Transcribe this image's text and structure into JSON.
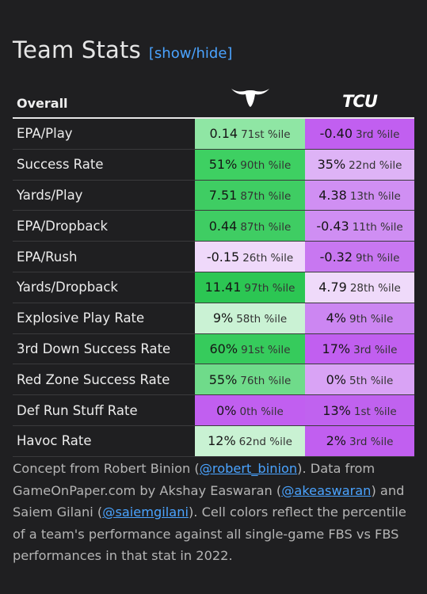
{
  "header": {
    "title": "Team Stats",
    "toggle_label": "[show/hide]"
  },
  "table": {
    "header_label": "Overall",
    "teams": [
      {
        "logo_icon": "texas-longhorn-icon",
        "logo_color": "#ffffff"
      },
      {
        "logo_icon": "tcu-wordmark-icon",
        "logo_text": "TCU",
        "logo_color": "#ffffff"
      }
    ],
    "rows": [
      {
        "stat": "EPA/Play",
        "team1": {
          "value": "0.14",
          "pct": "71st %ile",
          "color": "#8fe6a4"
        },
        "team2": {
          "value": "-0.40",
          "pct": "3rd %ile",
          "color": "#c15ff0"
        }
      },
      {
        "stat": "Success Rate",
        "team1": {
          "value": "51%",
          "pct": "90th %ile",
          "color": "#3ed062"
        },
        "team2": {
          "value": "35%",
          "pct": "22nd %ile",
          "color": "#deb3f6"
        }
      },
      {
        "stat": "Yards/Play",
        "team1": {
          "value": "7.51",
          "pct": "87th %ile",
          "color": "#3fcd63"
        },
        "team2": {
          "value": "4.38",
          "pct": "13th %ile",
          "color": "#d08ff3"
        }
      },
      {
        "stat": "EPA/Dropback",
        "team1": {
          "value": "0.44",
          "pct": "87th %ile",
          "color": "#3fcd63"
        },
        "team2": {
          "value": "-0.43",
          "pct": "11th %ile",
          "color": "#cf8ef3"
        }
      },
      {
        "stat": "EPA/Rush",
        "team1": {
          "value": "-0.15",
          "pct": "26th %ile",
          "color": "#efd9fa"
        },
        "team2": {
          "value": "-0.32",
          "pct": "9th %ile",
          "color": "#c877f1"
        }
      },
      {
        "stat": "Yards/Dropback",
        "team1": {
          "value": "11.41",
          "pct": "97th %ile",
          "color": "#2cc653"
        },
        "team2": {
          "value": "4.79",
          "pct": "28th %ile",
          "color": "#efdafa"
        }
      },
      {
        "stat": "Explosive Play Rate",
        "team1": {
          "value": "9%",
          "pct": "58th %ile",
          "color": "#caf2d4"
        },
        "team2": {
          "value": "4%",
          "pct": "9th %ile",
          "color": "#cc86f2"
        }
      },
      {
        "stat": "3rd Down Success Rate",
        "team1": {
          "value": "60%",
          "pct": "91st %ile",
          "color": "#36cb5c"
        },
        "team2": {
          "value": "17%",
          "pct": "3rd %ile",
          "color": "#c15ff0"
        }
      },
      {
        "stat": "Red Zone Success Rate",
        "team1": {
          "value": "55%",
          "pct": "76th %ile",
          "color": "#6fdb8a"
        },
        "team2": {
          "value": "0%",
          "pct": "5th %ile",
          "color": "#d9a3f5"
        }
      },
      {
        "stat": "Def Run Stuff Rate",
        "team1": {
          "value": "0%",
          "pct": "0th %ile",
          "color": "#c15ff0"
        },
        "team2": {
          "value": "13%",
          "pct": "1st %ile",
          "color": "#c062ef"
        }
      },
      {
        "stat": "Havoc Rate",
        "team1": {
          "value": "12%",
          "pct": "62nd %ile",
          "color": "#c9f2d3"
        },
        "team2": {
          "value": "2%",
          "pct": "3rd %ile",
          "color": "#c15ff0"
        }
      }
    ]
  },
  "footer": {
    "t1": "Concept from Robert Binion (",
    "link1": "@robert_binion",
    "t2": "). Data from GameOnPaper.com by Akshay Easwaran (",
    "link2": "@akeaswaran",
    "t3": ") and Saiem Gilani (",
    "link3": "@saiemgilani",
    "t4": "). Cell colors reflect the percentile of a team's performance against all single-game FBS vs FBS performances in that stat in 2022."
  }
}
